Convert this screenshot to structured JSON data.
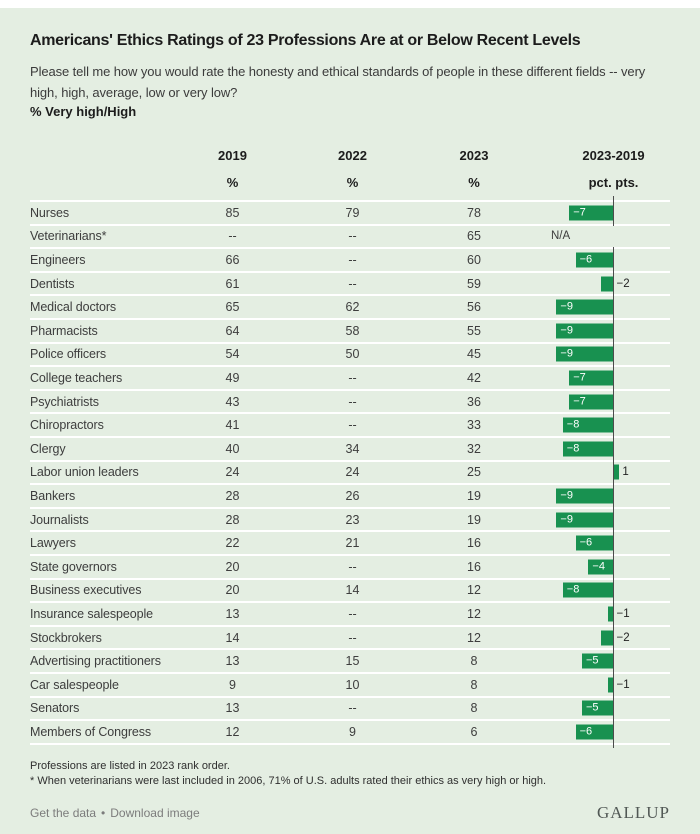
{
  "header": {
    "title": "Americans' Ethics Ratings of 23 Professions Are at or Below Recent Levels",
    "question": "Please tell me how you would rate the honesty and ethical standards of people in these different fields -- very high, high, average, low or very low?",
    "measure_label": "% Very high/High"
  },
  "table": {
    "columns": [
      "2019",
      "2022",
      "2023",
      "2023-2019"
    ],
    "units": [
      "%",
      "%",
      "%",
      "pct. pts."
    ],
    "rows": [
      {
        "profession": "Nurses",
        "v2019": "85",
        "v2022": "79",
        "v2023": "78",
        "diff": -7,
        "diff_label": "−7"
      },
      {
        "profession": "Veterinarians*",
        "v2019": "--",
        "v2022": "--",
        "v2023": "65",
        "diff": null,
        "diff_label": "N/A"
      },
      {
        "profession": "Engineers",
        "v2019": "66",
        "v2022": "--",
        "v2023": "60",
        "diff": -6,
        "diff_label": "−6"
      },
      {
        "profession": "Dentists",
        "v2019": "61",
        "v2022": "--",
        "v2023": "59",
        "diff": -2,
        "diff_label": "−2"
      },
      {
        "profession": "Medical doctors",
        "v2019": "65",
        "v2022": "62",
        "v2023": "56",
        "diff": -9,
        "diff_label": "−9"
      },
      {
        "profession": "Pharmacists",
        "v2019": "64",
        "v2022": "58",
        "v2023": "55",
        "diff": -9,
        "diff_label": "−9"
      },
      {
        "profession": "Police officers",
        "v2019": "54",
        "v2022": "50",
        "v2023": "45",
        "diff": -9,
        "diff_label": "−9"
      },
      {
        "profession": "College teachers",
        "v2019": "49",
        "v2022": "--",
        "v2023": "42",
        "diff": -7,
        "diff_label": "−7"
      },
      {
        "profession": "Psychiatrists",
        "v2019": "43",
        "v2022": "--",
        "v2023": "36",
        "diff": -7,
        "diff_label": "−7"
      },
      {
        "profession": "Chiropractors",
        "v2019": "41",
        "v2022": "--",
        "v2023": "33",
        "diff": -8,
        "diff_label": "−8"
      },
      {
        "profession": "Clergy",
        "v2019": "40",
        "v2022": "34",
        "v2023": "32",
        "diff": -8,
        "diff_label": "−8"
      },
      {
        "profession": "Labor union leaders",
        "v2019": "24",
        "v2022": "24",
        "v2023": "25",
        "diff": 1,
        "diff_label": "1"
      },
      {
        "profession": "Bankers",
        "v2019": "28",
        "v2022": "26",
        "v2023": "19",
        "diff": -9,
        "diff_label": "−9"
      },
      {
        "profession": "Journalists",
        "v2019": "28",
        "v2022": "23",
        "v2023": "19",
        "diff": -9,
        "diff_label": "−9"
      },
      {
        "profession": "Lawyers",
        "v2019": "22",
        "v2022": "21",
        "v2023": "16",
        "diff": -6,
        "diff_label": "−6"
      },
      {
        "profession": "State governors",
        "v2019": "20",
        "v2022": "--",
        "v2023": "16",
        "diff": -4,
        "diff_label": "−4"
      },
      {
        "profession": "Business executives",
        "v2019": "20",
        "v2022": "14",
        "v2023": "12",
        "diff": -8,
        "diff_label": "−8"
      },
      {
        "profession": "Insurance salespeople",
        "v2019": "13",
        "v2022": "--",
        "v2023": "12",
        "diff": -1,
        "diff_label": "−1"
      },
      {
        "profession": "Stockbrokers",
        "v2019": "14",
        "v2022": "--",
        "v2023": "12",
        "diff": -2,
        "diff_label": "−2"
      },
      {
        "profession": "Advertising practitioners",
        "v2019": "13",
        "v2022": "15",
        "v2023": "8",
        "diff": -5,
        "diff_label": "−5"
      },
      {
        "profession": "Car salespeople",
        "v2019": "9",
        "v2022": "10",
        "v2023": "8",
        "diff": -1,
        "diff_label": "−1"
      },
      {
        "profession": "Senators",
        "v2019": "13",
        "v2022": "--",
        "v2023": "8",
        "diff": -5,
        "diff_label": "−5"
      },
      {
        "profession": "Members of Congress",
        "v2019": "12",
        "v2022": "9",
        "v2023": "6",
        "diff": -6,
        "diff_label": "−6"
      }
    ]
  },
  "chart_data": {
    "type": "bar",
    "orientation": "horizontal",
    "title": "Americans' Ethics Ratings of 23 Professions Are at or Below Recent Levels",
    "subtitle": "Please tell me how you would rate the honesty and ethical standards of people in these different fields -- very high, high, average, low or very low?",
    "measure": "% Very high/High",
    "categories": [
      "Nurses",
      "Veterinarians*",
      "Engineers",
      "Dentists",
      "Medical doctors",
      "Pharmacists",
      "Police officers",
      "College teachers",
      "Psychiatrists",
      "Chiropractors",
      "Clergy",
      "Labor union leaders",
      "Bankers",
      "Journalists",
      "Lawyers",
      "State governors",
      "Business executives",
      "Insurance salespeople",
      "Stockbrokers",
      "Advertising practitioners",
      "Car salespeople",
      "Senators",
      "Members of Congress"
    ],
    "series": [
      {
        "name": "2019 %",
        "values": [
          85,
          null,
          66,
          61,
          65,
          64,
          54,
          49,
          43,
          41,
          40,
          24,
          28,
          28,
          22,
          20,
          20,
          13,
          14,
          13,
          9,
          13,
          12
        ]
      },
      {
        "name": "2022 %",
        "values": [
          79,
          null,
          null,
          null,
          62,
          58,
          50,
          null,
          null,
          null,
          34,
          24,
          26,
          23,
          21,
          null,
          14,
          null,
          null,
          15,
          10,
          null,
          9
        ]
      },
      {
        "name": "2023 %",
        "values": [
          78,
          65,
          60,
          59,
          56,
          55,
          45,
          42,
          36,
          33,
          32,
          25,
          19,
          19,
          16,
          16,
          12,
          12,
          12,
          8,
          8,
          8,
          6
        ]
      },
      {
        "name": "2023-2019 pct. pts.",
        "values": [
          -7,
          null,
          -6,
          -2,
          -9,
          -9,
          -9,
          -7,
          -7,
          -8,
          -8,
          1,
          -9,
          -9,
          -6,
          -4,
          -8,
          -1,
          -2,
          -5,
          -1,
          -5,
          -6
        ]
      }
    ],
    "bar_series": "2023-2019 pct. pts.",
    "xlim": [
      -9,
      1
    ],
    "bar_color": "#189150",
    "background_color": "#e4eee2",
    "grid": false,
    "legend_position": "none"
  },
  "footnotes": [
    "Professions are listed in 2023 rank order.",
    "* When veterinarians were last included in 2006, 71% of U.S. adults rated their ethics as very high or high."
  ],
  "footer": {
    "links": [
      "Get the data",
      "Download image"
    ],
    "separator": "•",
    "logo": "GALLUP"
  }
}
